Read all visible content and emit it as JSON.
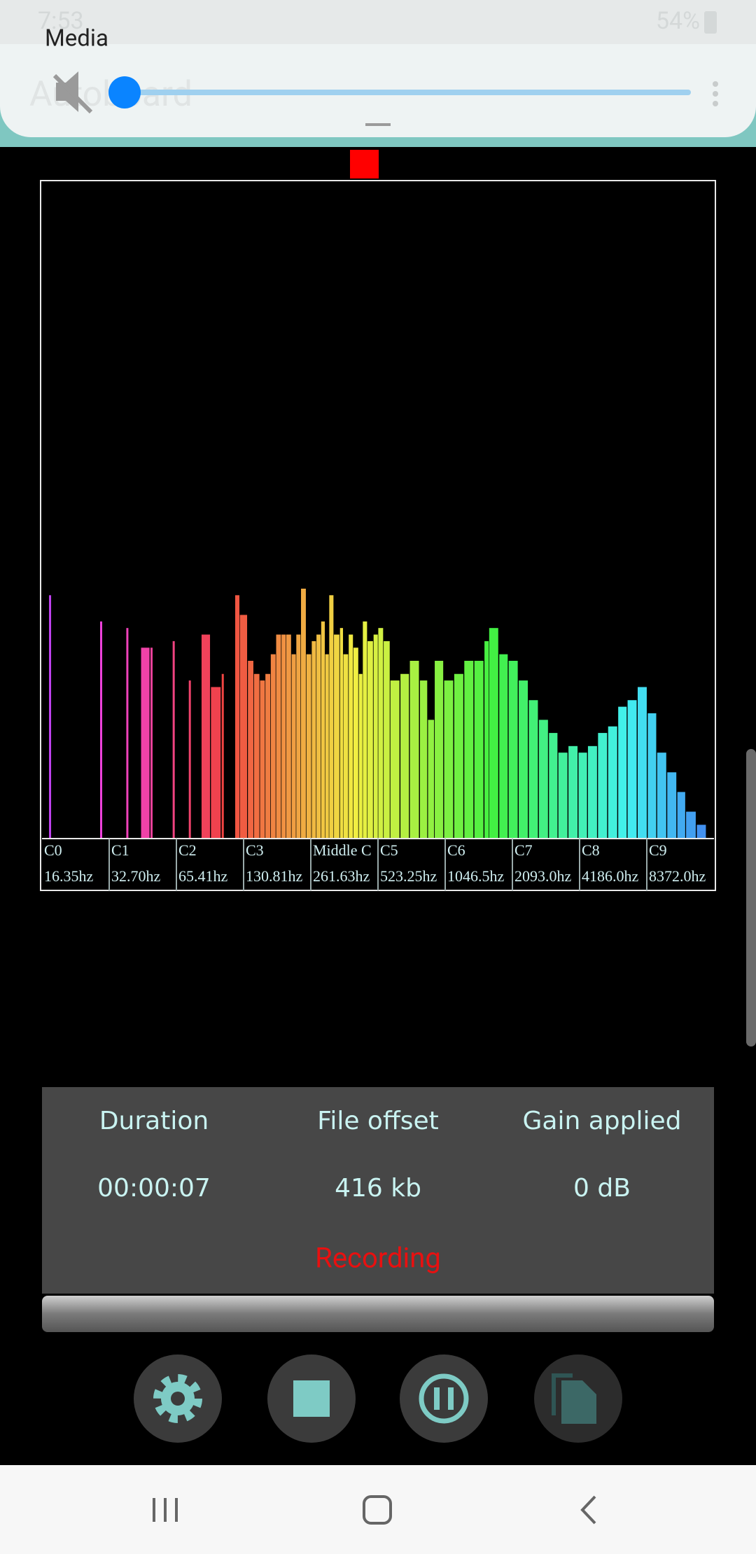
{
  "status_bar": {
    "time": "7:53",
    "battery": "54%"
  },
  "app_title": "Autoboard",
  "media_panel": {
    "title": "Media"
  },
  "spectrum": {
    "labels": [
      {
        "note": "C0",
        "freq": "16.35hz"
      },
      {
        "note": "C1",
        "freq": "32.70hz"
      },
      {
        "note": "C2",
        "freq": "65.41hz"
      },
      {
        "note": "C3",
        "freq": "130.81hz"
      },
      {
        "note": "Middle C",
        "freq": "261.63hz"
      },
      {
        "note": "C5",
        "freq": "523.25hz"
      },
      {
        "note": "C6",
        "freq": "1046.5hz"
      },
      {
        "note": "C7",
        "freq": "2093.0hz"
      },
      {
        "note": "C8",
        "freq": "4186.0hz"
      },
      {
        "note": "C9",
        "freq": "8372.0hz"
      }
    ],
    "octaves": [
      0.12,
      0.88,
      1.27,
      1.49,
      1.63,
      1.96,
      2.2,
      2.39,
      2.53,
      2.69,
      2.89,
      2.96,
      3.08,
      3.17,
      3.26,
      3.34,
      3.42,
      3.5,
      3.58,
      3.65,
      3.73,
      3.8,
      3.87,
      3.95,
      4.03,
      4.1,
      4.17,
      4.23,
      4.29,
      4.36,
      4.45,
      4.5,
      4.58,
      4.65,
      4.73,
      4.79,
      4.86,
      4.95,
      5.02,
      5.1,
      5.2,
      5.35,
      5.49,
      5.64,
      5.76,
      5.86,
      6.0,
      6.15,
      6.3,
      6.45,
      6.6,
      6.67,
      6.82,
      6.96,
      7.11,
      7.26,
      7.41,
      7.56,
      7.7,
      7.85,
      8.0,
      8.14,
      8.29,
      8.44,
      8.59,
      8.73,
      8.88,
      9.03,
      9.17,
      9.32,
      9.47,
      9.6,
      9.76
    ],
    "levels": [
      37,
      33,
      32,
      29,
      29,
      30,
      24,
      31,
      23,
      25,
      37,
      34,
      27,
      25,
      24,
      25,
      28,
      31,
      31,
      31,
      28,
      31,
      38,
      28,
      30,
      31,
      33,
      28,
      37,
      31,
      32,
      28,
      31,
      29,
      25,
      33,
      30,
      31,
      32,
      30,
      24,
      25,
      27,
      24,
      18,
      27,
      24,
      25,
      27,
      27,
      30,
      32,
      28,
      27,
      24,
      21,
      18,
      16,
      13,
      14,
      13,
      14,
      16,
      17,
      20,
      21,
      23,
      19,
      13,
      10,
      7,
      4,
      2
    ]
  },
  "stats": [
    {
      "label": "Duration",
      "value": "00:00:07"
    },
    {
      "label": "File offset",
      "value": "416 kb"
    },
    {
      "label": "Gain applied",
      "value": "0 dB"
    }
  ],
  "state": "Recording"
}
